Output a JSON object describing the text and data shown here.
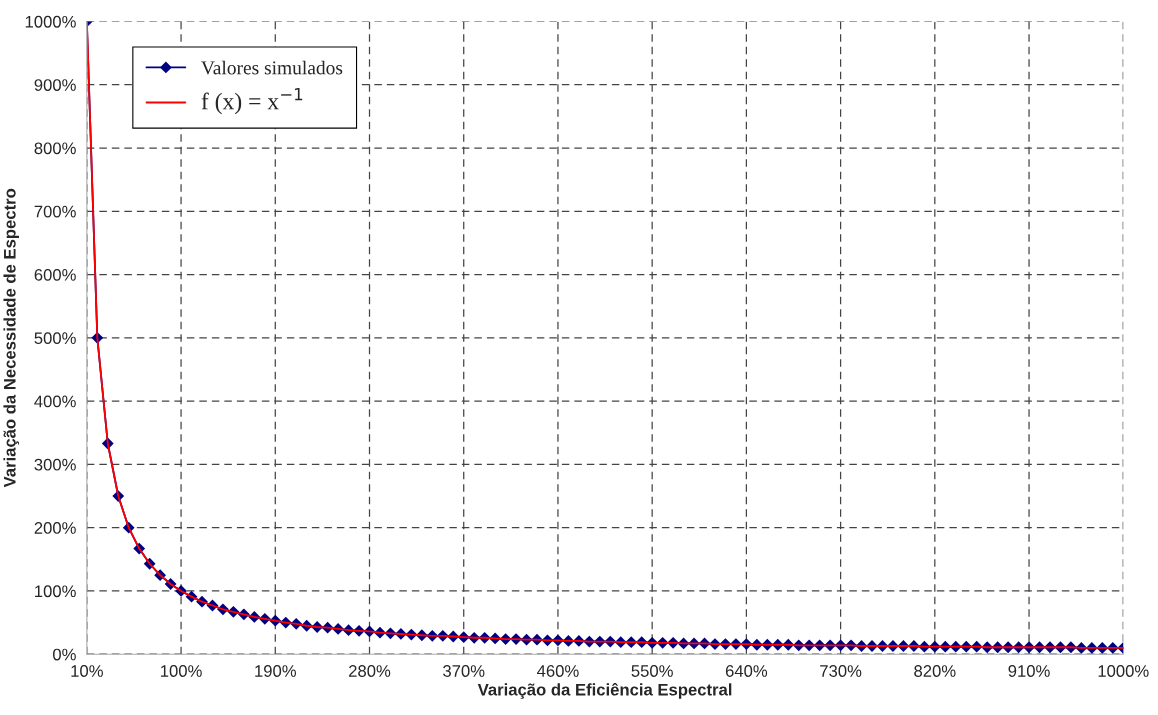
{
  "chart_data": {
    "type": "line",
    "xlabel": "Variação da Eficiência Espectral",
    "ylabel": "Variação da Necessidade de Espectro",
    "x": [
      10,
      20,
      30,
      40,
      50,
      60,
      70,
      80,
      90,
      100,
      110,
      120,
      130,
      140,
      150,
      160,
      170,
      180,
      190,
      200,
      210,
      220,
      230,
      240,
      250,
      260,
      270,
      280,
      290,
      300,
      310,
      320,
      330,
      340,
      350,
      360,
      370,
      380,
      390,
      400,
      410,
      420,
      430,
      440,
      450,
      460,
      470,
      480,
      490,
      500,
      510,
      520,
      530,
      540,
      550,
      560,
      570,
      580,
      590,
      600,
      610,
      620,
      630,
      640,
      650,
      660,
      670,
      680,
      690,
      700,
      710,
      720,
      730,
      740,
      750,
      760,
      770,
      780,
      790,
      800,
      810,
      820,
      830,
      840,
      850,
      860,
      870,
      880,
      890,
      900,
      910,
      920,
      930,
      940,
      950,
      960,
      970,
      980,
      990,
      1000
    ],
    "series": [
      {
        "name": "Valores simulados",
        "color": "#000080",
        "marker": "diamond",
        "values": [
          1000,
          500,
          333,
          250,
          200,
          167,
          143,
          125,
          111,
          100,
          91,
          83,
          77,
          71,
          67,
          63,
          59,
          56,
          53,
          50,
          48,
          45,
          43,
          42,
          40,
          38,
          37,
          36,
          34,
          33,
          32,
          31,
          30,
          29,
          29,
          28,
          27,
          26,
          26,
          25,
          24,
          24,
          23,
          23,
          22,
          22,
          21,
          21,
          20,
          20,
          20,
          19,
          19,
          19,
          18,
          18,
          18,
          17,
          17,
          17,
          16,
          16,
          16,
          16,
          15,
          15,
          15,
          15,
          14,
          14,
          14,
          14,
          14,
          14,
          13,
          13,
          13,
          13,
          13,
          13,
          12,
          12,
          12,
          12,
          12,
          12,
          11,
          11,
          11,
          11,
          11,
          11,
          11,
          11,
          11,
          10,
          10,
          10,
          10,
          10
        ]
      },
      {
        "name": "f (x) = x$^{−1}$",
        "color": "#ff0000",
        "marker": "none",
        "values": [
          1000,
          500,
          333,
          250,
          200,
          167,
          143,
          125,
          111,
          100,
          91,
          83,
          77,
          71,
          67,
          63,
          59,
          56,
          53,
          50,
          48,
          45,
          43,
          42,
          40,
          38,
          37,
          36,
          34,
          33,
          32,
          31,
          30,
          29,
          29,
          28,
          27,
          26,
          26,
          25,
          24,
          24,
          23,
          23,
          22,
          22,
          21,
          21,
          20,
          20,
          20,
          19,
          19,
          19,
          18,
          18,
          18,
          17,
          17,
          17,
          16,
          16,
          16,
          16,
          15,
          15,
          15,
          15,
          14,
          14,
          14,
          14,
          14,
          14,
          13,
          13,
          13,
          13,
          13,
          13,
          12,
          12,
          12,
          12,
          12,
          12,
          11,
          11,
          11,
          11,
          11,
          11,
          11,
          11,
          11,
          10,
          10,
          10,
          10,
          10
        ]
      }
    ],
    "xlim": [
      10,
      1000
    ],
    "xticks": [
      {
        "value": 10,
        "label": "10%"
      },
      {
        "value": 100,
        "label": "100%"
      },
      {
        "value": 190,
        "label": "190%"
      },
      {
        "value": 280,
        "label": "280%"
      },
      {
        "value": 370,
        "label": "370%"
      },
      {
        "value": 460,
        "label": "460%"
      },
      {
        "value": 550,
        "label": "550%"
      },
      {
        "value": 640,
        "label": "640%"
      },
      {
        "value": 730,
        "label": "730%"
      },
      {
        "value": 820,
        "label": "820%"
      },
      {
        "value": 910,
        "label": "910%"
      },
      {
        "value": 1000,
        "label": "1000%"
      }
    ],
    "ylim": [
      0,
      1000
    ],
    "yticks": [
      {
        "value": 0,
        "label": "0%"
      },
      {
        "value": 100,
        "label": "100%"
      },
      {
        "value": 200,
        "label": "200%"
      },
      {
        "value": 300,
        "label": "300%"
      },
      {
        "value": 400,
        "label": "400%"
      },
      {
        "value": 500,
        "label": "500%"
      },
      {
        "value": 600,
        "label": "600%"
      },
      {
        "value": 700,
        "label": "700%"
      },
      {
        "value": 800,
        "label": "800%"
      },
      {
        "value": 900,
        "label": "900%"
      },
      {
        "value": 1000,
        "label": "1000%"
      }
    ],
    "grid": true,
    "legend": "top left",
    "line_style": "solid"
  }
}
